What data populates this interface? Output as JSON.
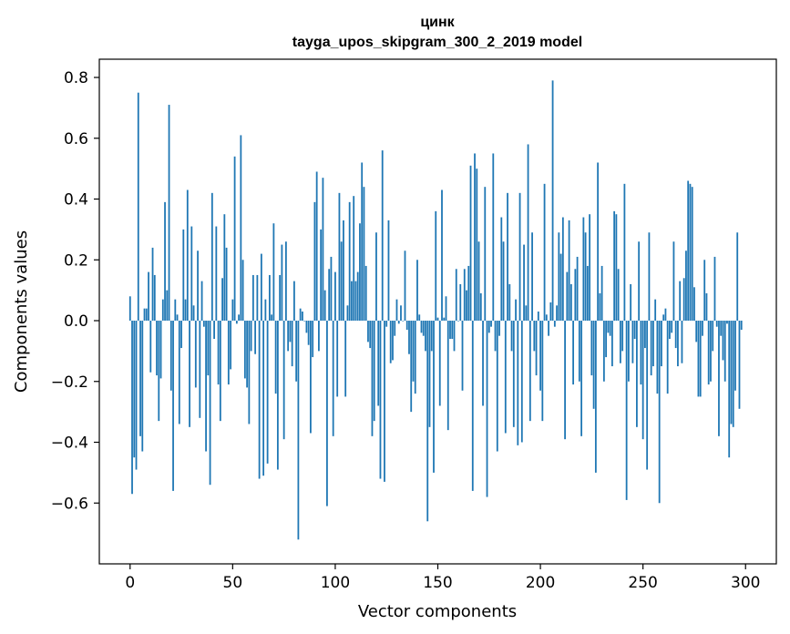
{
  "chart_data": {
    "type": "bar",
    "title": "цинк",
    "subtitle": "tayga_upos_skipgram_300_2_2019 model",
    "xlabel": "Vector components",
    "ylabel": "Components values",
    "xlim": [
      -15,
      315
    ],
    "ylim": [
      -0.8,
      0.86
    ],
    "x_ticks": [
      0,
      50,
      100,
      150,
      200,
      250,
      300
    ],
    "x_tick_labels": [
      "0",
      "50",
      "100",
      "150",
      "200",
      "250",
      "300"
    ],
    "y_ticks": [
      -0.6,
      -0.4,
      -0.2,
      0.0,
      0.2,
      0.4,
      0.6,
      0.8
    ],
    "y_tick_labels": [
      "−0.6",
      "−0.4",
      "−0.2",
      "0.0",
      "0.2",
      "0.4",
      "0.6",
      "0.8"
    ],
    "bar_color": "#1f77b4",
    "grid": false,
    "values": [
      0.08,
      -0.57,
      -0.45,
      -0.49,
      0.75,
      -0.38,
      -0.43,
      0.04,
      0.04,
      0.16,
      -0.17,
      0.24,
      0.15,
      -0.18,
      -0.33,
      -0.19,
      0.07,
      0.39,
      0.1,
      0.71,
      -0.23,
      -0.56,
      0.07,
      0.02,
      -0.34,
      -0.09,
      0.3,
      0.07,
      0.43,
      -0.35,
      0.31,
      0.05,
      -0.22,
      0.23,
      -0.32,
      0.13,
      -0.02,
      -0.43,
      -0.18,
      -0.54,
      0.42,
      -0.06,
      0.31,
      -0.21,
      -0.33,
      0.14,
      0.35,
      0.24,
      -0.21,
      -0.16,
      0.07,
      0.54,
      -0.01,
      0.02,
      0.61,
      0.2,
      -0.19,
      -0.22,
      -0.34,
      -0.1,
      0.15,
      -0.11,
      0.15,
      -0.52,
      0.22,
      -0.51,
      0.07,
      -0.47,
      0.15,
      0.02,
      0.32,
      -0.24,
      -0.49,
      0.15,
      0.25,
      -0.39,
      0.26,
      -0.1,
      -0.07,
      -0.15,
      0.13,
      -0.2,
      -0.72,
      0.04,
      0.03,
      0.0,
      -0.04,
      -0.08,
      -0.37,
      -0.12,
      0.39,
      0.49,
      -0.1,
      0.3,
      0.47,
      0.1,
      -0.61,
      0.17,
      0.21,
      -0.38,
      0.16,
      -0.25,
      0.42,
      0.26,
      0.33,
      -0.25,
      0.05,
      0.39,
      0.13,
      0.41,
      0.13,
      0.16,
      0.32,
      0.52,
      0.44,
      0.18,
      -0.07,
      -0.09,
      -0.38,
      -0.33,
      0.29,
      -0.28,
      -0.52,
      0.56,
      -0.53,
      -0.02,
      0.33,
      -0.14,
      -0.13,
      -0.05,
      0.07,
      -0.01,
      0.05,
      0.0,
      0.23,
      -0.03,
      -0.11,
      -0.3,
      -0.2,
      -0.24,
      0.2,
      0.02,
      -0.04,
      -0.05,
      -0.1,
      -0.66,
      -0.35,
      -0.1,
      -0.5,
      0.36,
      0.01,
      -0.28,
      0.43,
      0.01,
      0.08,
      -0.36,
      -0.06,
      -0.06,
      -0.1,
      0.17,
      0.0,
      0.12,
      -0.23,
      0.17,
      0.1,
      0.18,
      0.51,
      -0.56,
      0.55,
      0.5,
      0.26,
      0.09,
      -0.28,
      0.44,
      -0.58,
      -0.04,
      -0.02,
      0.55,
      -0.1,
      -0.43,
      -0.05,
      0.34,
      0.26,
      -0.37,
      0.42,
      0.12,
      -0.1,
      -0.35,
      0.07,
      -0.41,
      0.42,
      -0.4,
      0.25,
      0.05,
      0.58,
      -0.33,
      0.29,
      -0.1,
      -0.18,
      0.03,
      -0.23,
      -0.33,
      0.45,
      0.02,
      -0.05,
      0.06,
      0.79,
      -0.02,
      0.05,
      0.29,
      0.22,
      0.34,
      -0.39,
      0.16,
      0.33,
      0.12,
      -0.21,
      0.17,
      0.21,
      -0.2,
      -0.38,
      0.34,
      0.29,
      0.18,
      0.35,
      -0.18,
      -0.29,
      -0.5,
      0.52,
      0.09,
      0.18,
      -0.2,
      -0.12,
      -0.04,
      -0.05,
      -0.15,
      0.36,
      0.35,
      0.17,
      -0.14,
      -0.1,
      0.45,
      -0.59,
      -0.2,
      0.12,
      -0.14,
      -0.06,
      -0.35,
      0.26,
      -0.21,
      -0.39,
      -0.09,
      -0.49,
      0.29,
      -0.18,
      -0.15,
      0.07,
      -0.24,
      -0.6,
      -0.15,
      0.02,
      0.04,
      -0.24,
      -0.06,
      -0.04,
      0.26,
      -0.09,
      -0.15,
      0.13,
      -0.14,
      0.14,
      0.23,
      0.46,
      0.45,
      0.44,
      0.11,
      -0.07,
      -0.25,
      -0.25,
      -0.05,
      0.2,
      0.09,
      -0.21,
      -0.2,
      -0.1,
      0.21,
      -0.02,
      -0.38,
      -0.05,
      -0.13,
      -0.2,
      -0.01,
      -0.45,
      -0.34,
      -0.35,
      -0.23,
      0.29,
      -0.29,
      -0.03
    ]
  }
}
